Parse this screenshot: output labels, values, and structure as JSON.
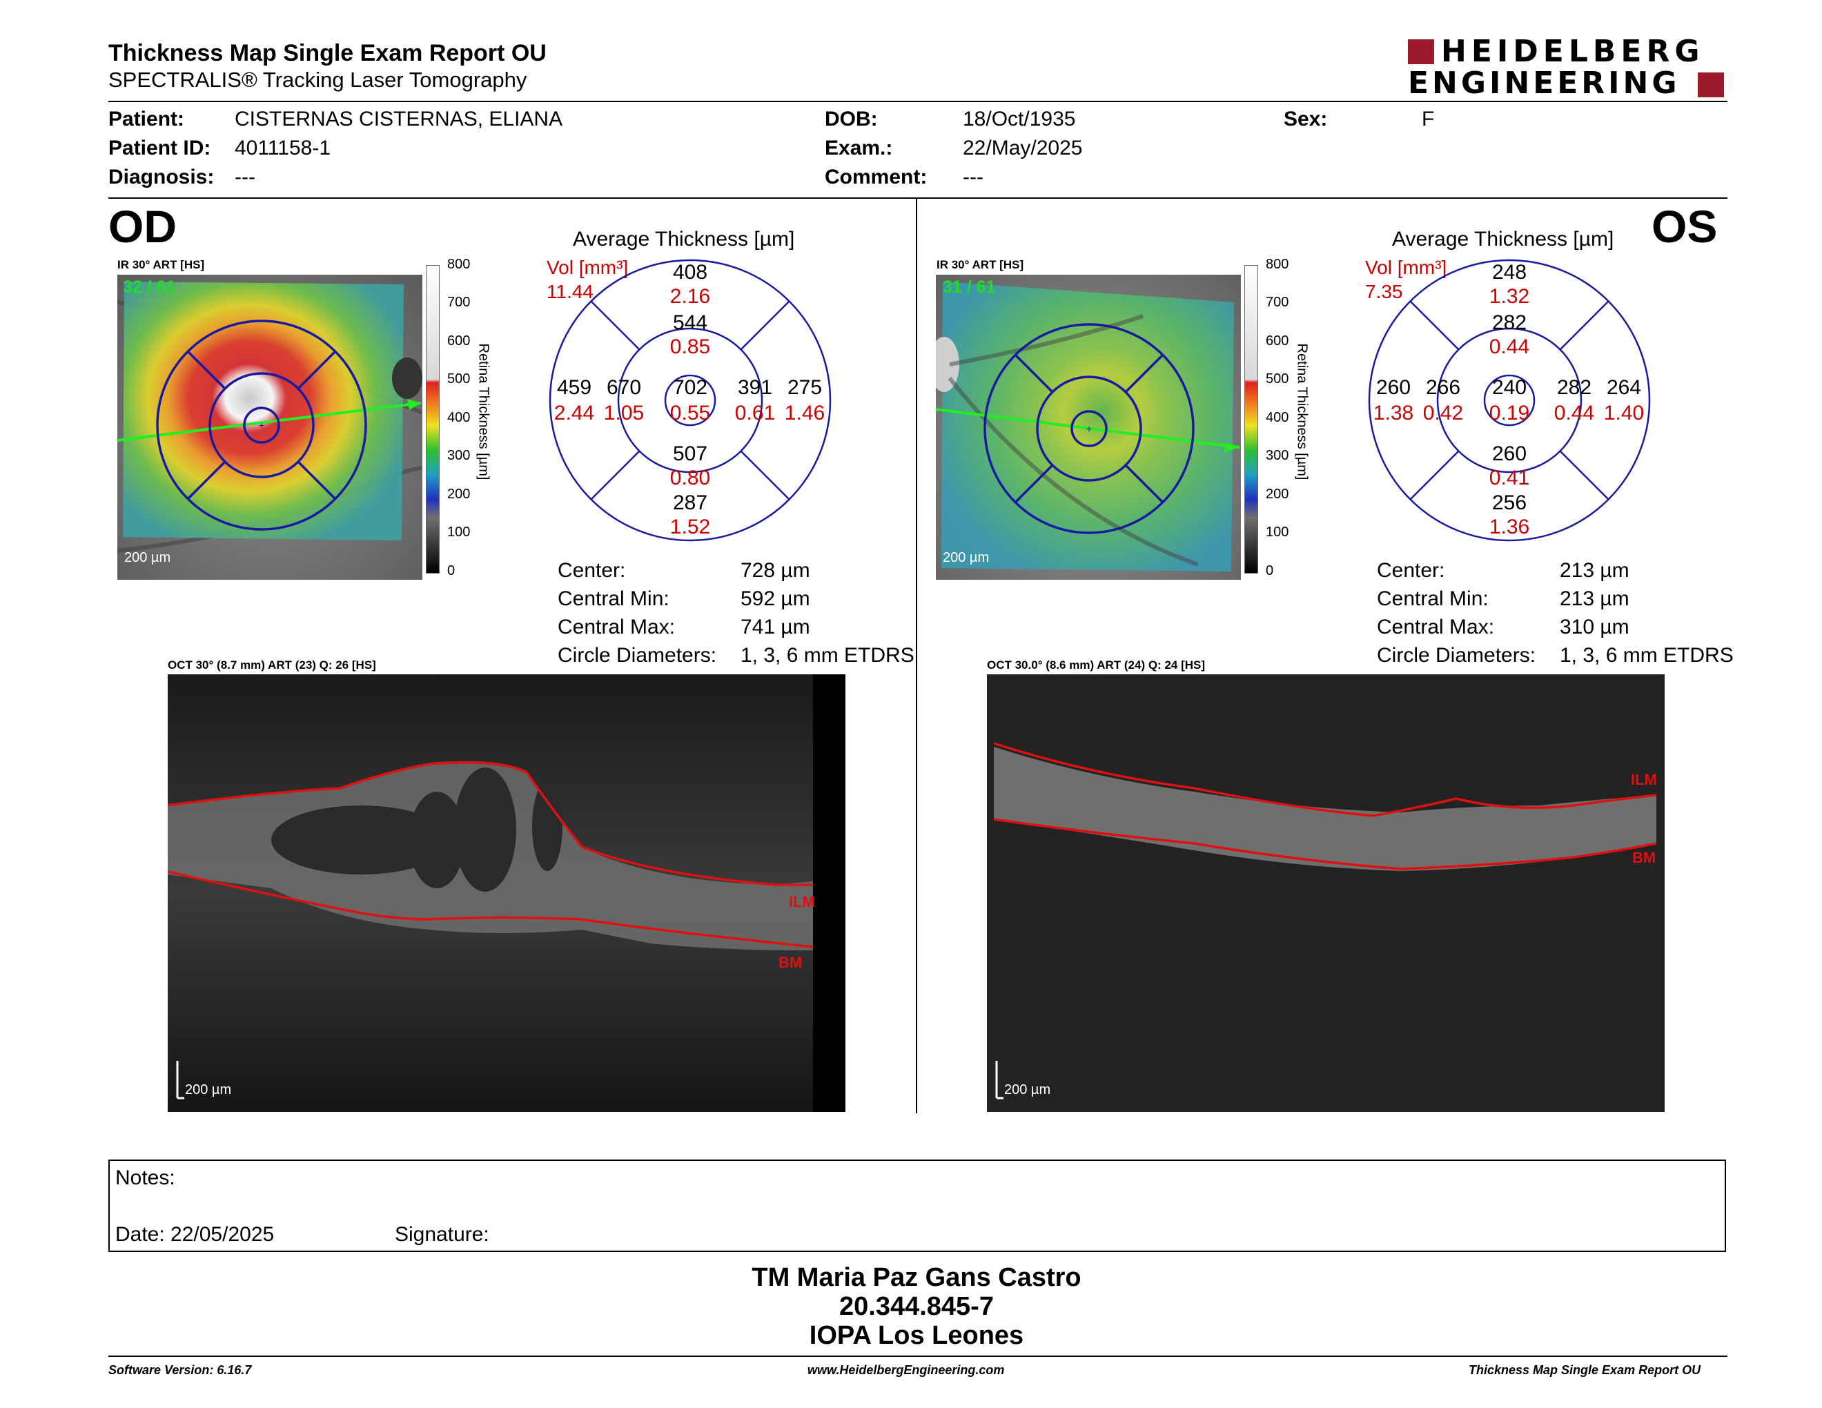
{
  "report": {
    "title": "Thickness Map Single Exam Report OU",
    "subtitle": "SPECTRALIS® Tracking Laser Tomography",
    "brand_line1": "HEIDELBERG",
    "brand_line2": "ENGINEERING"
  },
  "patient": {
    "patient_label": "Patient:",
    "patient_value": "CISTERNAS CISTERNAS, ELIANA",
    "id_label": "Patient ID:",
    "id_value": "4011158-1",
    "diag_label": "Diagnosis:",
    "diag_value": "---",
    "dob_label": "DOB:",
    "dob_value": "18/Oct/1935",
    "exam_label": "Exam.:",
    "exam_value": "22/May/2025",
    "comment_label": "Comment:",
    "comment_value": "---",
    "sex_label": "Sex:",
    "sex_value": "F"
  },
  "od": {
    "eye": "OD",
    "ir_label": "IR 30° ART [HS]",
    "frames": "32 / 61",
    "scale": "200 µm",
    "avg_title": "Average Thickness [µm]",
    "vol_label": "Vol [mm³]",
    "vol_value": "11.44",
    "etdrs": {
      "center_t": "702",
      "center_v": "0.55",
      "inner_sup_t": "544",
      "inner_sup_v": "0.85",
      "inner_inf_t": "507",
      "inner_inf_v": "0.80",
      "inner_left_t": "670",
      "inner_left_v": "1.05",
      "inner_right_t": "391",
      "inner_right_v": "0.61",
      "outer_sup_t": "408",
      "outer_sup_v": "2.16",
      "outer_inf_t": "287",
      "outer_inf_v": "1.52",
      "outer_left_t": "459",
      "outer_left_v": "2.44",
      "outer_right_t": "275",
      "outer_right_v": "1.46"
    },
    "stats": {
      "center_label": "Center:",
      "center_value": "728 µm",
      "min_label": "Central Min:",
      "min_value": "592 µm",
      "max_label": "Central Max:",
      "max_value": "741 µm",
      "diam_label": "Circle Diameters:",
      "diam_value": "1, 3, 6 mm ETDRS"
    },
    "oct_label": "OCT 30° (8.7 mm) ART (23) Q: 26 [HS]",
    "ilm": "ILM",
    "bm": "BM",
    "oct_scale": "200 µm"
  },
  "os": {
    "eye": "OS",
    "ir_label": "IR 30° ART [HS]",
    "frames": "31 / 61",
    "scale": "200 µm",
    "avg_title": "Average Thickness [µm]",
    "vol_label": "Vol [mm³]",
    "vol_value": "7.35",
    "etdrs": {
      "center_t": "240",
      "center_v": "0.19",
      "inner_sup_t": "282",
      "inner_sup_v": "0.44",
      "inner_inf_t": "260",
      "inner_inf_v": "0.41",
      "inner_left_t": "266",
      "inner_left_v": "0.42",
      "inner_right_t": "282",
      "inner_right_v": "0.44",
      "outer_sup_t": "248",
      "outer_sup_v": "1.32",
      "outer_inf_t": "256",
      "outer_inf_v": "1.36",
      "outer_left_t": "260",
      "outer_left_v": "1.38",
      "outer_right_t": "264",
      "outer_right_v": "1.40"
    },
    "stats": {
      "center_label": "Center:",
      "center_value": "213 µm",
      "min_label": "Central Min:",
      "min_value": "213 µm",
      "max_label": "Central Max:",
      "max_value": "310 µm",
      "diam_label": "Circle Diameters:",
      "diam_value": "1, 3, 6 mm ETDRS"
    },
    "oct_label": "OCT 30.0° (8.6 mm) ART (24) Q: 24 [HS]",
    "ilm": "ILM",
    "bm": "BM",
    "oct_scale": "200 µm"
  },
  "colorbar": {
    "ticks": [
      "800",
      "700",
      "600",
      "500",
      "400",
      "300",
      "200",
      "100",
      "0"
    ],
    "title": "Retina  Thickness [µm]"
  },
  "notes": {
    "notes_label": "Notes:",
    "date_label": "Date: 22/05/2025",
    "signature_label": "Signature:"
  },
  "signer": {
    "name": "TM Maria Paz Gans Castro",
    "id": "20.344.845-7",
    "org": "IOPA Los Leones"
  },
  "footer": {
    "software": "Software Version: 6.16.7",
    "url": "www.HeidelbergEngineering.com",
    "report": "Thickness Map Single Exam Report OU"
  },
  "colors": {
    "etdrs_grid": "#1a1aa0",
    "volume_red": "#cc0000",
    "frame_green": "#22dd22",
    "ilm_red": "#cc1111"
  }
}
